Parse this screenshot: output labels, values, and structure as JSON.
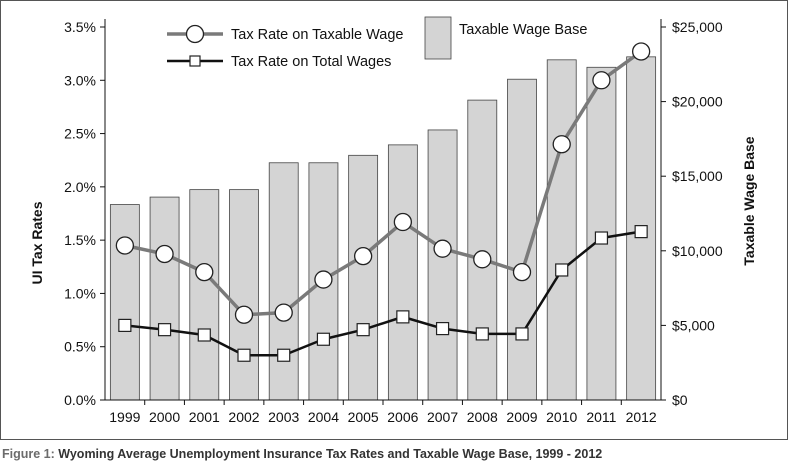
{
  "caption": {
    "label": "Figure 1:",
    "text": "Wyoming Average Unemployment Insurance Tax Rates and Taxable Wage Base, 1999 - 2012"
  },
  "chart_data": {
    "type": "bar",
    "title": "",
    "categories": [
      "1999",
      "2000",
      "2001",
      "2002",
      "2003",
      "2004",
      "2005",
      "2006",
      "2007",
      "2008",
      "2009",
      "2010",
      "2011",
      "2012"
    ],
    "ylabel_left": "UI Tax Rates",
    "ylabel_right": "Taxable Wage Base",
    "xlabel": "",
    "ylim_left": [
      0,
      3.5
    ],
    "ylim_right": [
      0,
      25000
    ],
    "yticks_left": [
      "0.0%",
      "0.5%",
      "1.0%",
      "1.5%",
      "2.0%",
      "2.5%",
      "3.0%",
      "3.5%"
    ],
    "yticks_right": [
      "$0",
      "$5,000",
      "$10,000",
      "$15,000",
      "$20,000",
      "$25,000"
    ],
    "legend_placement": "top",
    "series": [
      {
        "name": "Taxable Wage Base",
        "type": "bar",
        "axis": "right",
        "color": "#d4d4d4",
        "values": [
          13100,
          13600,
          14100,
          14100,
          15900,
          15900,
          16400,
          17100,
          18100,
          20100,
          21500,
          22800,
          22300,
          23000
        ]
      },
      {
        "name": "Tax Rate on Taxable Wage",
        "type": "line",
        "axis": "left",
        "marker": "circle",
        "color": "#7a7a7a",
        "values": [
          1.45,
          1.37,
          1.2,
          0.8,
          0.82,
          1.13,
          1.35,
          1.67,
          1.42,
          1.32,
          1.2,
          2.4,
          3.0,
          3.27
        ]
      },
      {
        "name": "Tax Rate on Total Wages",
        "type": "line",
        "axis": "left",
        "marker": "square",
        "color": "#111111",
        "values": [
          0.7,
          0.66,
          0.61,
          0.42,
          0.42,
          0.57,
          0.66,
          0.78,
          0.67,
          0.62,
          0.62,
          1.22,
          1.52,
          1.58
        ]
      }
    ]
  }
}
